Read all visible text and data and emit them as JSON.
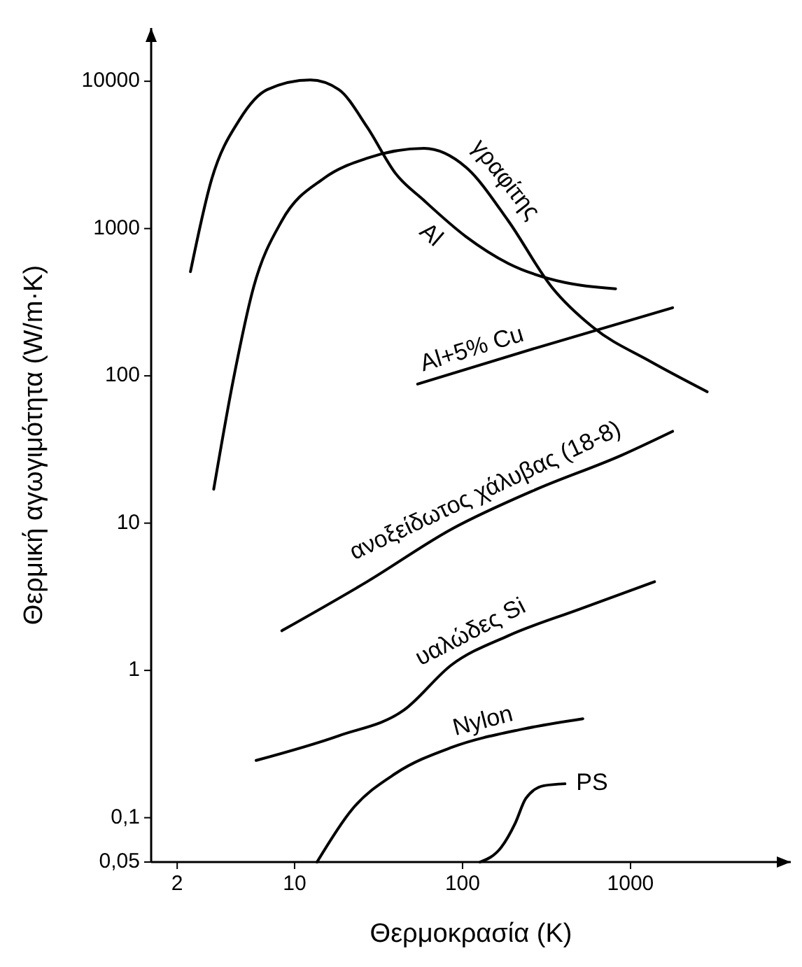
{
  "chart_data": {
    "type": "line",
    "xlabel": "Θερμοκρασία (K)",
    "ylabel": "Θερμική αγωγιμότητα (W/m·K)",
    "log": "xy",
    "grid": false,
    "marker": "none",
    "line_style": "solid",
    "xlim": [
      1.4,
      9000
    ],
    "xticks": [
      2,
      10,
      100,
      1000
    ],
    "ylim": [
      0.05,
      23000
    ],
    "yticks": [
      {
        "value": 0.05,
        "label": "0,05"
      },
      {
        "value": 0.1,
        "label": "0,1"
      },
      1,
      10,
      100,
      1000,
      10000
    ],
    "series": [
      {
        "name": "Al",
        "color": "#000000",
        "x": [
          2.4,
          3.2,
          4.7,
          6.9,
          12.4,
          18.3,
          27,
          40,
          59,
          105,
          187,
          407,
          815
        ],
        "values": [
          510,
          2140,
          5480,
          8800,
          10200,
          8800,
          4900,
          2360,
          1550,
          880,
          580,
          430,
          390
        ]
      },
      {
        "name": "γραφίτης",
        "color": "#000000",
        "x": [
          3.3,
          4.3,
          5.7,
          8.4,
          15,
          27,
          59,
          105,
          187,
          340,
          600,
          1300,
          2860
        ],
        "values": [
          17,
          92,
          400,
          1130,
          2200,
          3000,
          3500,
          2600,
          1130,
          400,
          213,
          126,
          78
        ]
      },
      {
        "name": "Al+5% Cu",
        "color": "#000000",
        "x": [
          54,
          276,
          1780
        ],
        "values": [
          88,
          155,
          290
        ]
      },
      {
        "name": "ανοξείδωτος χάλυβας (18-8)",
        "color": "#000000",
        "x": [
          8.4,
          27,
          86,
          276,
          890,
          1780
        ],
        "values": [
          1.86,
          4,
          9.1,
          17,
          29,
          42
        ]
      },
      {
        "name": "υαλώδες Si",
        "color": "#000000",
        "x": [
          5.9,
          18.3,
          45,
          86,
          187,
          494,
          1390
        ],
        "values": [
          0.245,
          0.36,
          0.54,
          1.09,
          1.72,
          2.6,
          4.0
        ]
      },
      {
        "name": "Nylon",
        "color": "#000000",
        "x": [
          13.6,
          22,
          40,
          86,
          229,
          520
        ],
        "values": [
          0.05,
          0.114,
          0.2,
          0.3,
          0.4,
          0.47
        ]
      },
      {
        "name": "PS",
        "color": "#000000",
        "x": [
          127,
          170,
          206,
          238,
          305,
          407
        ],
        "values": [
          0.05,
          0.063,
          0.092,
          0.135,
          0.165,
          0.17
        ]
      }
    ]
  }
}
